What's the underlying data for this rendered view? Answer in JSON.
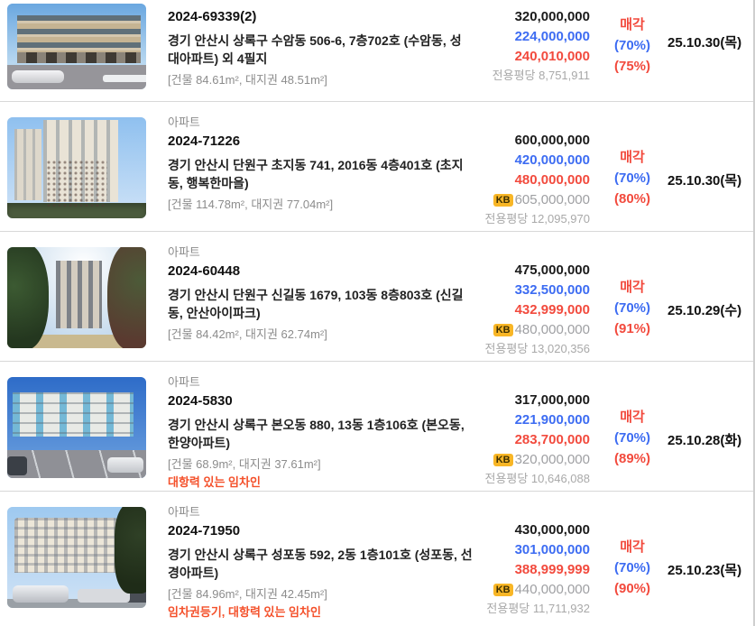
{
  "kb_badge_label": "KB",
  "colors": {
    "appraised_price": "#1a1a1a",
    "min_bid_price": "#3d6cf2",
    "sold_price": "#f24a3d",
    "status_sold": "#f24a3d",
    "warning_text": "#f4502a",
    "kb_badge_bg": "#f8b626",
    "muted_text": "#8c8c8c"
  },
  "listings": [
    {
      "type": "",
      "case_no": "2024-69339(2)",
      "address": "경기 안산시 상록구 수암동 506-6, 7층702호 (수암동, 성대아파트) 외 4필지",
      "area": "[건물 84.61m², 대지권 48.51m²]",
      "warning": "",
      "appraised": "320,000,000",
      "min_bid": "224,000,000",
      "sold": "240,010,000",
      "kb": "",
      "pyeong": "전용평당 8,751,911",
      "status": "매각",
      "pct_min": "(70%)",
      "pct_sold": "(75%)",
      "date": "25.10.30(목)",
      "photo": "v1",
      "photo_desc": "low-rise-commercial-building-with-parked-cars"
    },
    {
      "type": "아파트",
      "case_no": "2024-71226",
      "address": "경기 안산시 단원구 초지동 741, 2016동 4층401호 (초지동, 행복한마을)",
      "area": "[건물 114.78m², 대지권 77.04m²]",
      "warning": "",
      "appraised": "600,000,000",
      "min_bid": "420,000,000",
      "sold": "480,000,000",
      "kb": "605,000,000",
      "pyeong": "전용평당 12,095,970",
      "status": "매각",
      "pct_min": "(70%)",
      "pct_sold": "(80%)",
      "date": "25.10.30(목)",
      "photo": "v2",
      "photo_desc": "tall-cream-apartment-towers-with-bare-tree"
    },
    {
      "type": "아파트",
      "case_no": "2024-60448",
      "address": "경기 안산시 단원구 신길동 1679, 103동 8층803호 (신길동, 안산아이파크)",
      "area": "[건물 84.42m², 대지권 62.74m²]",
      "warning": "",
      "appraised": "475,000,000",
      "min_bid": "332,500,000",
      "sold": "432,999,000",
      "kb": "480,000,000",
      "pyeong": "전용평당 13,020,356",
      "status": "매각",
      "pct_min": "(70%)",
      "pct_sold": "(91%)",
      "date": "25.10.29(수)",
      "photo": "v3",
      "photo_desc": "apartment-tower-framed-by-dark-trees"
    },
    {
      "type": "아파트",
      "case_no": "2024-5830",
      "address": "경기 안산시 상록구 본오동 880, 13동 1층106호 (본오동, 한양아파트)",
      "area": "[건물 68.9m², 대지권 37.61m²]",
      "warning": "대항력 있는 임차인",
      "appraised": "317,000,000",
      "min_bid": "221,900,000",
      "sold": "283,700,000",
      "kb": "320,000,000",
      "pyeong": "전용평당 10,646,088",
      "status": "매각",
      "pct_min": "(70%)",
      "pct_sold": "(89%)",
      "date": "25.10.28(화)",
      "photo": "v4",
      "photo_desc": "five-story-blue-white-apartment-with-parking-lot"
    },
    {
      "type": "아파트",
      "case_no": "2024-71950",
      "address": "경기 안산시 상록구 성포동 592, 2동 1층101호 (성포동, 선경아파트)",
      "area": "[건물 84.96m², 대지권 42.45m²]",
      "warning": "임차권등기, 대항력 있는 임차인",
      "appraised": "430,000,000",
      "min_bid": "301,000,000",
      "sold": "388,999,999",
      "kb": "440,000,000",
      "pyeong": "전용평당 11,711,932",
      "status": "매각",
      "pct_min": "(70%)",
      "pct_sold": "(90%)",
      "date": "25.10.23(목)",
      "photo": "v5",
      "photo_desc": "wide-cream-apartment-block-with-parked-cars-and-tree"
    }
  ]
}
